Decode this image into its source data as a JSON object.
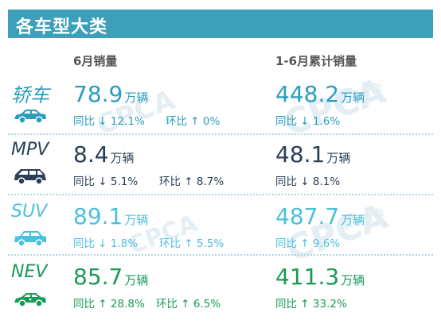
{
  "header": {
    "title": "各车型大类"
  },
  "columns": {
    "month": "6月销量",
    "ytd": "1-6月累计销量"
  },
  "unit": "万辆",
  "yoy_label": "同比",
  "mom_label": "环比",
  "colors": {
    "header_bg": "#3d9fb9",
    "sedan": "#2a9dbe",
    "mpv": "#2b3f57",
    "suv": "#4cc0dc",
    "nev": "#199a58"
  },
  "rows": [
    {
      "category": "轿车",
      "icon": "sedan-icon",
      "month_value": "78.9",
      "month_yoy": "↓ 12.1%",
      "month_mom": "↑ 0%",
      "ytd_value": "448.2",
      "ytd_yoy": "↓ 1.6%"
    },
    {
      "category": "MPV",
      "icon": "mpv-icon",
      "month_value": "8.4",
      "month_yoy": "↓ 5.1%",
      "month_mom": "↑ 8.7%",
      "ytd_value": "48.1",
      "ytd_yoy": "↓ 8.1%"
    },
    {
      "category": "SUV",
      "icon": "suv-icon",
      "month_value": "89.1",
      "month_yoy": "↓ 1.8%",
      "month_mom": "↑ 5.5%",
      "ytd_value": "487.7",
      "ytd_yoy": "↑ 9.6%"
    },
    {
      "category": "NEV",
      "icon": "nev-icon",
      "month_value": "85.7",
      "month_yoy": "↑ 28.8%",
      "month_mom": "↑ 6.5%",
      "ytd_value": "411.3",
      "ytd_yoy": "↑ 33.2%"
    }
  ],
  "watermark": {
    "brand": "CPCA",
    "text": "乘联分会"
  }
}
